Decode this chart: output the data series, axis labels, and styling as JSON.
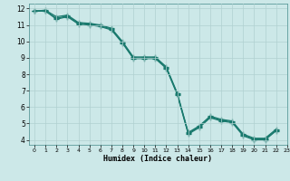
{
  "title": "",
  "xlabel": "Humidex (Indice chaleur)",
  "bg_color": "#cce8e8",
  "grid_color": "#b0d0d0",
  "line_color": "#1a7a6e",
  "xlim": [
    -0.5,
    23
  ],
  "ylim": [
    3.7,
    12.3
  ],
  "xticks": [
    0,
    1,
    2,
    3,
    4,
    5,
    6,
    7,
    8,
    9,
    10,
    11,
    12,
    13,
    14,
    15,
    16,
    17,
    18,
    19,
    20,
    21,
    22,
    23
  ],
  "yticks": [
    4,
    5,
    6,
    7,
    8,
    9,
    10,
    11,
    12
  ],
  "line1_x": [
    0,
    1,
    2,
    3,
    4,
    5,
    6,
    7,
    8,
    9,
    10,
    11,
    12,
    13,
    14,
    15,
    16,
    17,
    18,
    19,
    20,
    21,
    22
  ],
  "line1_y": [
    11.85,
    11.85,
    11.4,
    11.55,
    11.1,
    11.05,
    10.95,
    10.75,
    9.95,
    9.0,
    9.0,
    9.0,
    8.4,
    6.8,
    4.4,
    4.8,
    5.4,
    5.2,
    5.1,
    4.3,
    4.05,
    4.05,
    4.6
  ],
  "line2_x": [
    0,
    1,
    2,
    3,
    4,
    5,
    6,
    7,
    8,
    9,
    10,
    11,
    12,
    13,
    14,
    15,
    16,
    17,
    18,
    19,
    20,
    21,
    22
  ],
  "line2_y": [
    11.85,
    11.85,
    11.35,
    11.5,
    11.05,
    11.0,
    10.9,
    10.7,
    9.9,
    8.95,
    8.95,
    8.95,
    8.35,
    6.75,
    4.35,
    4.75,
    5.35,
    5.15,
    5.05,
    4.25,
    4.0,
    4.0,
    4.55
  ],
  "line3_x": [
    0,
    1,
    2,
    3,
    4,
    5,
    6,
    7,
    8,
    9,
    10,
    11,
    12,
    13,
    14,
    15,
    16,
    17,
    18,
    19,
    20,
    21,
    22
  ],
  "line3_y": [
    11.85,
    11.9,
    11.5,
    11.6,
    11.15,
    11.1,
    11.0,
    10.8,
    10.0,
    9.05,
    9.05,
    9.05,
    8.45,
    6.85,
    4.45,
    4.85,
    5.45,
    5.25,
    5.15,
    4.35,
    4.1,
    4.1,
    4.65
  ],
  "marker": "+",
  "markersize": 4,
  "linewidth": 0.9
}
